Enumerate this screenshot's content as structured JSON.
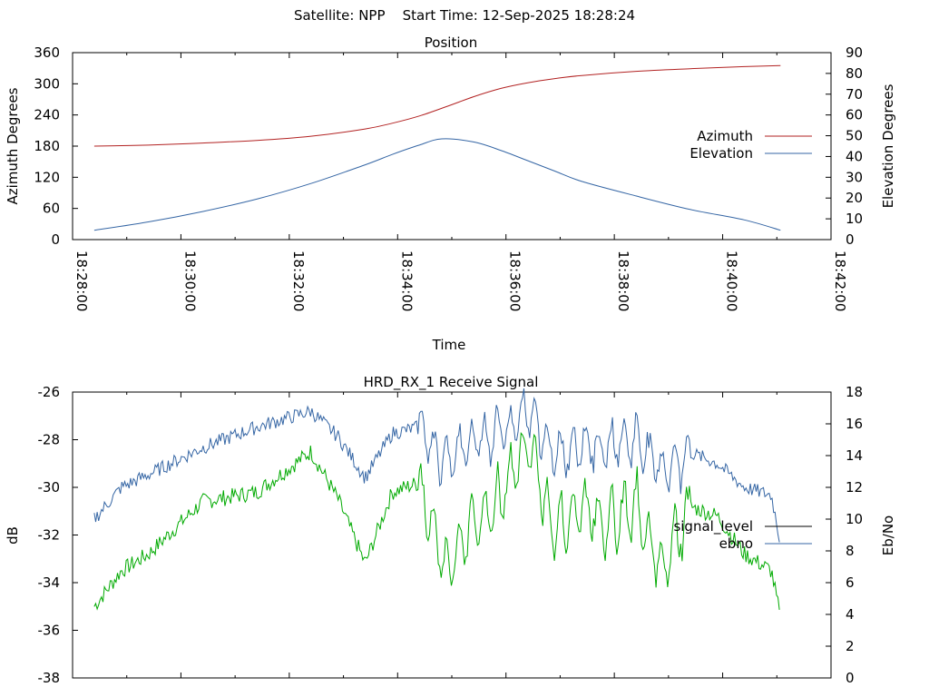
{
  "header": {
    "text": "Satellite: NPP    Start Time: 12-Sep-2025 18:28:24"
  },
  "chart_data": [
    {
      "type": "line",
      "title": "Position",
      "xlabel": "Time",
      "ylabel": "Azimuth Degrees",
      "y2label": "Elevation Degrees",
      "xlim": [
        "18:28:00",
        "18:42:00"
      ],
      "xticks": [
        "18:28:00",
        "18:30:00",
        "18:32:00",
        "18:34:00",
        "18:36:00",
        "18:38:00",
        "18:40:00",
        "18:42:00"
      ],
      "ylim": [
        0,
        360
      ],
      "yticks": [
        0,
        60,
        120,
        180,
        240,
        300,
        360
      ],
      "y2lim": [
        0,
        90
      ],
      "y2ticks": [
        0,
        10,
        20,
        30,
        40,
        50,
        60,
        70,
        80,
        90
      ],
      "legend_position": "right",
      "series": [
        {
          "name": "Azimuth",
          "axis": "left",
          "color": "#b22222",
          "x": [
            "18:28:24",
            "18:29:24",
            "18:30:24",
            "18:31:24",
            "18:32:24",
            "18:33:24",
            "18:33:54",
            "18:34:24",
            "18:34:54",
            "18:35:24",
            "18:35:54",
            "18:36:24",
            "18:36:54",
            "18:37:24",
            "18:38:24",
            "18:39:24",
            "18:40:24",
            "18:41:04"
          ],
          "values": [
            180,
            182,
            186,
            191,
            199,
            213,
            224,
            238,
            256,
            275,
            291,
            302,
            310,
            316,
            324,
            329,
            333,
            335
          ]
        },
        {
          "name": "Elevation",
          "axis": "right",
          "color": "#3465a4",
          "x": [
            "18:28:24",
            "18:29:24",
            "18:30:24",
            "18:31:24",
            "18:32:24",
            "18:33:24",
            "18:33:54",
            "18:34:24",
            "18:34:49",
            "18:35:24",
            "18:35:54",
            "18:36:24",
            "18:36:54",
            "18:37:24",
            "18:38:24",
            "18:39:24",
            "18:40:24",
            "18:41:04"
          ],
          "values": [
            4.5,
            8.5,
            13.5,
            19.5,
            27,
            36,
            41,
            45.5,
            48.5,
            47,
            43,
            38,
            33,
            28,
            21,
            14.5,
            9.5,
            4.5
          ]
        }
      ]
    },
    {
      "type": "line",
      "title": "HRD_RX_1 Receive Signal",
      "ylabel": "dB",
      "y2label": "Eb/No",
      "xlim": [
        "18:28:00",
        "18:42:00"
      ],
      "ylim": [
        -38,
        -26
      ],
      "yticks": [
        -38,
        -36,
        -34,
        -32,
        -30,
        -28,
        -26
      ],
      "y2lim": [
        0,
        18
      ],
      "y2ticks": [
        0,
        2,
        4,
        6,
        8,
        10,
        12,
        14,
        16,
        18
      ],
      "legend_position": "right",
      "series": [
        {
          "name": "signal_level",
          "axis": "left",
          "color": "#00aa00",
          "x": [
            "18:28:24",
            "18:28:54",
            "18:29:24",
            "18:30:24",
            "18:31:24",
            "18:32:24",
            "18:32:54",
            "18:33:24",
            "18:33:54",
            "18:34:24",
            "18:34:54",
            "18:35:24",
            "18:35:54",
            "18:36:24",
            "18:36:54",
            "18:37:24",
            "18:37:54",
            "18:38:24",
            "18:38:54",
            "18:39:24",
            "18:39:54",
            "18:40:24",
            "18:40:54",
            "18:41:04"
          ],
          "values": [
            -35,
            -33.5,
            -32.8,
            -30.6,
            -30.2,
            -28.5,
            -30.5,
            -33.2,
            -30.2,
            -29.8,
            -33.5,
            -31.5,
            -30.5,
            -28,
            -32,
            -30.8,
            -31.5,
            -30.8,
            -33.5,
            -30.8,
            -31.2,
            -32.8,
            -33.5,
            -35.5
          ]
        },
        {
          "name": "ebno",
          "axis": "right",
          "color": "#3465a4",
          "x": [
            "18:28:24",
            "18:28:54",
            "18:29:24",
            "18:30:24",
            "18:31:24",
            "18:32:24",
            "18:32:54",
            "18:33:24",
            "18:33:54",
            "18:34:24",
            "18:34:54",
            "18:35:24",
            "18:35:54",
            "18:36:24",
            "18:36:54",
            "18:37:24",
            "18:37:54",
            "18:38:24",
            "18:38:54",
            "18:39:24",
            "18:39:54",
            "18:40:24",
            "18:40:54",
            "18:41:04"
          ],
          "values": [
            10,
            12,
            12.8,
            14.5,
            15.8,
            16.8,
            15.2,
            12.6,
            15.4,
            15.8,
            13.5,
            15,
            15.5,
            16.8,
            14,
            14.8,
            14.5,
            15,
            13,
            14.2,
            13.5,
            12,
            11.5,
            8.5
          ]
        }
      ]
    }
  ]
}
